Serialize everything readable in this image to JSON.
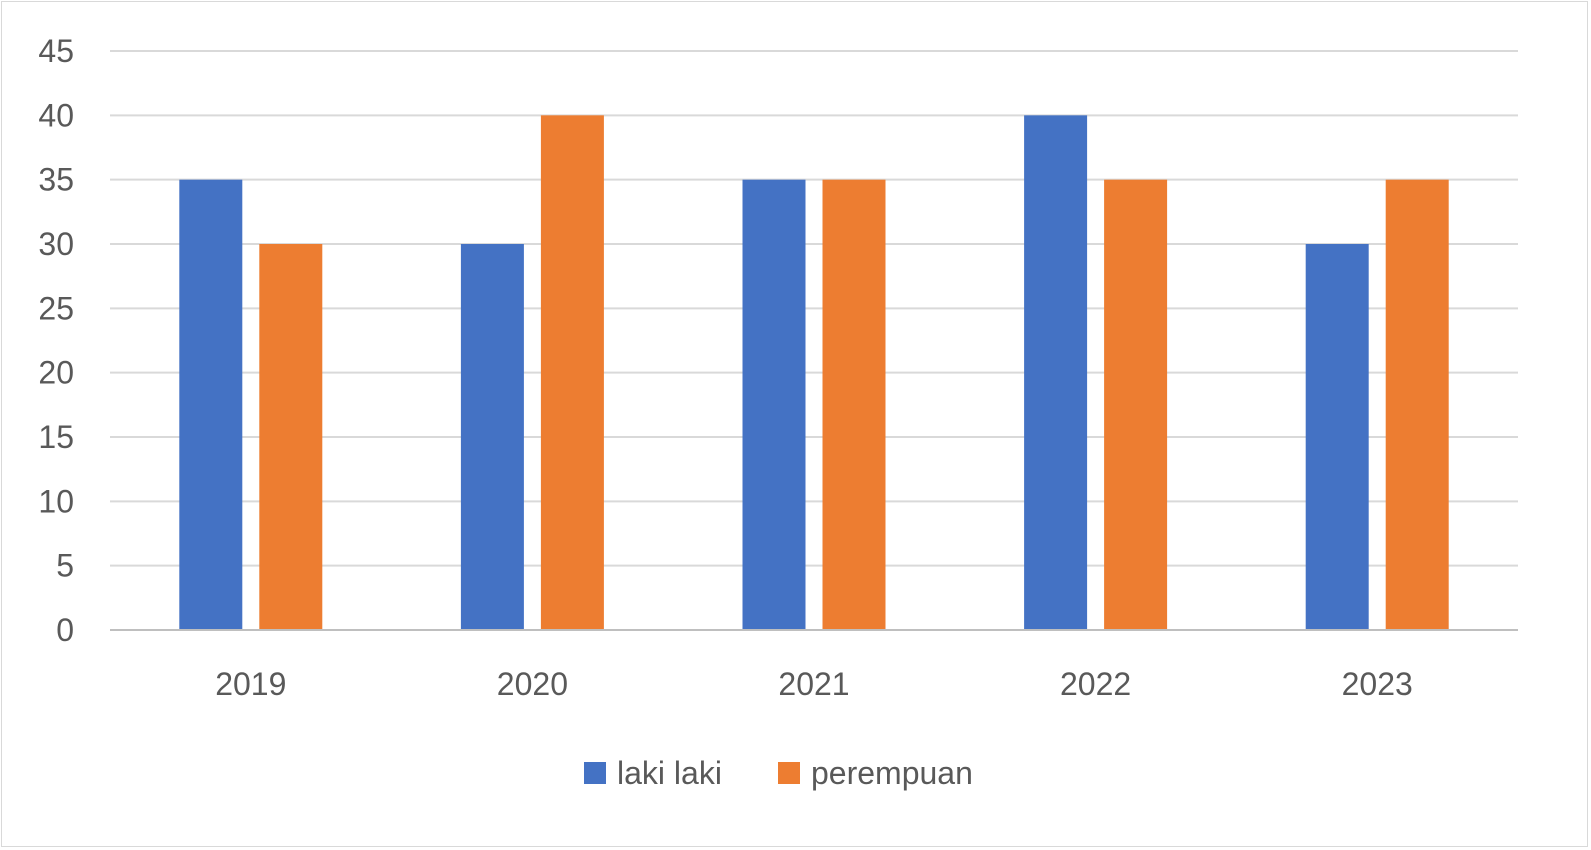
{
  "chart_data": {
    "type": "bar",
    "title": "",
    "xlabel": "",
    "ylabel": "",
    "categories": [
      "2019",
      "2020",
      "2021",
      "2022",
      "2023"
    ],
    "series": [
      {
        "name": "laki laki",
        "values": [
          35,
          30,
          35,
          40,
          30
        ],
        "color": "#4472C4"
      },
      {
        "name": "perempuan",
        "values": [
          30,
          40,
          35,
          35,
          35
        ],
        "color": "#ED7D31"
      }
    ],
    "ylim": [
      0,
      45
    ],
    "ytick_step": 5,
    "grid": true,
    "legend_position": "bottom",
    "gridline_color": "#d9d9d9",
    "axis_color": "#bfbfbf"
  }
}
